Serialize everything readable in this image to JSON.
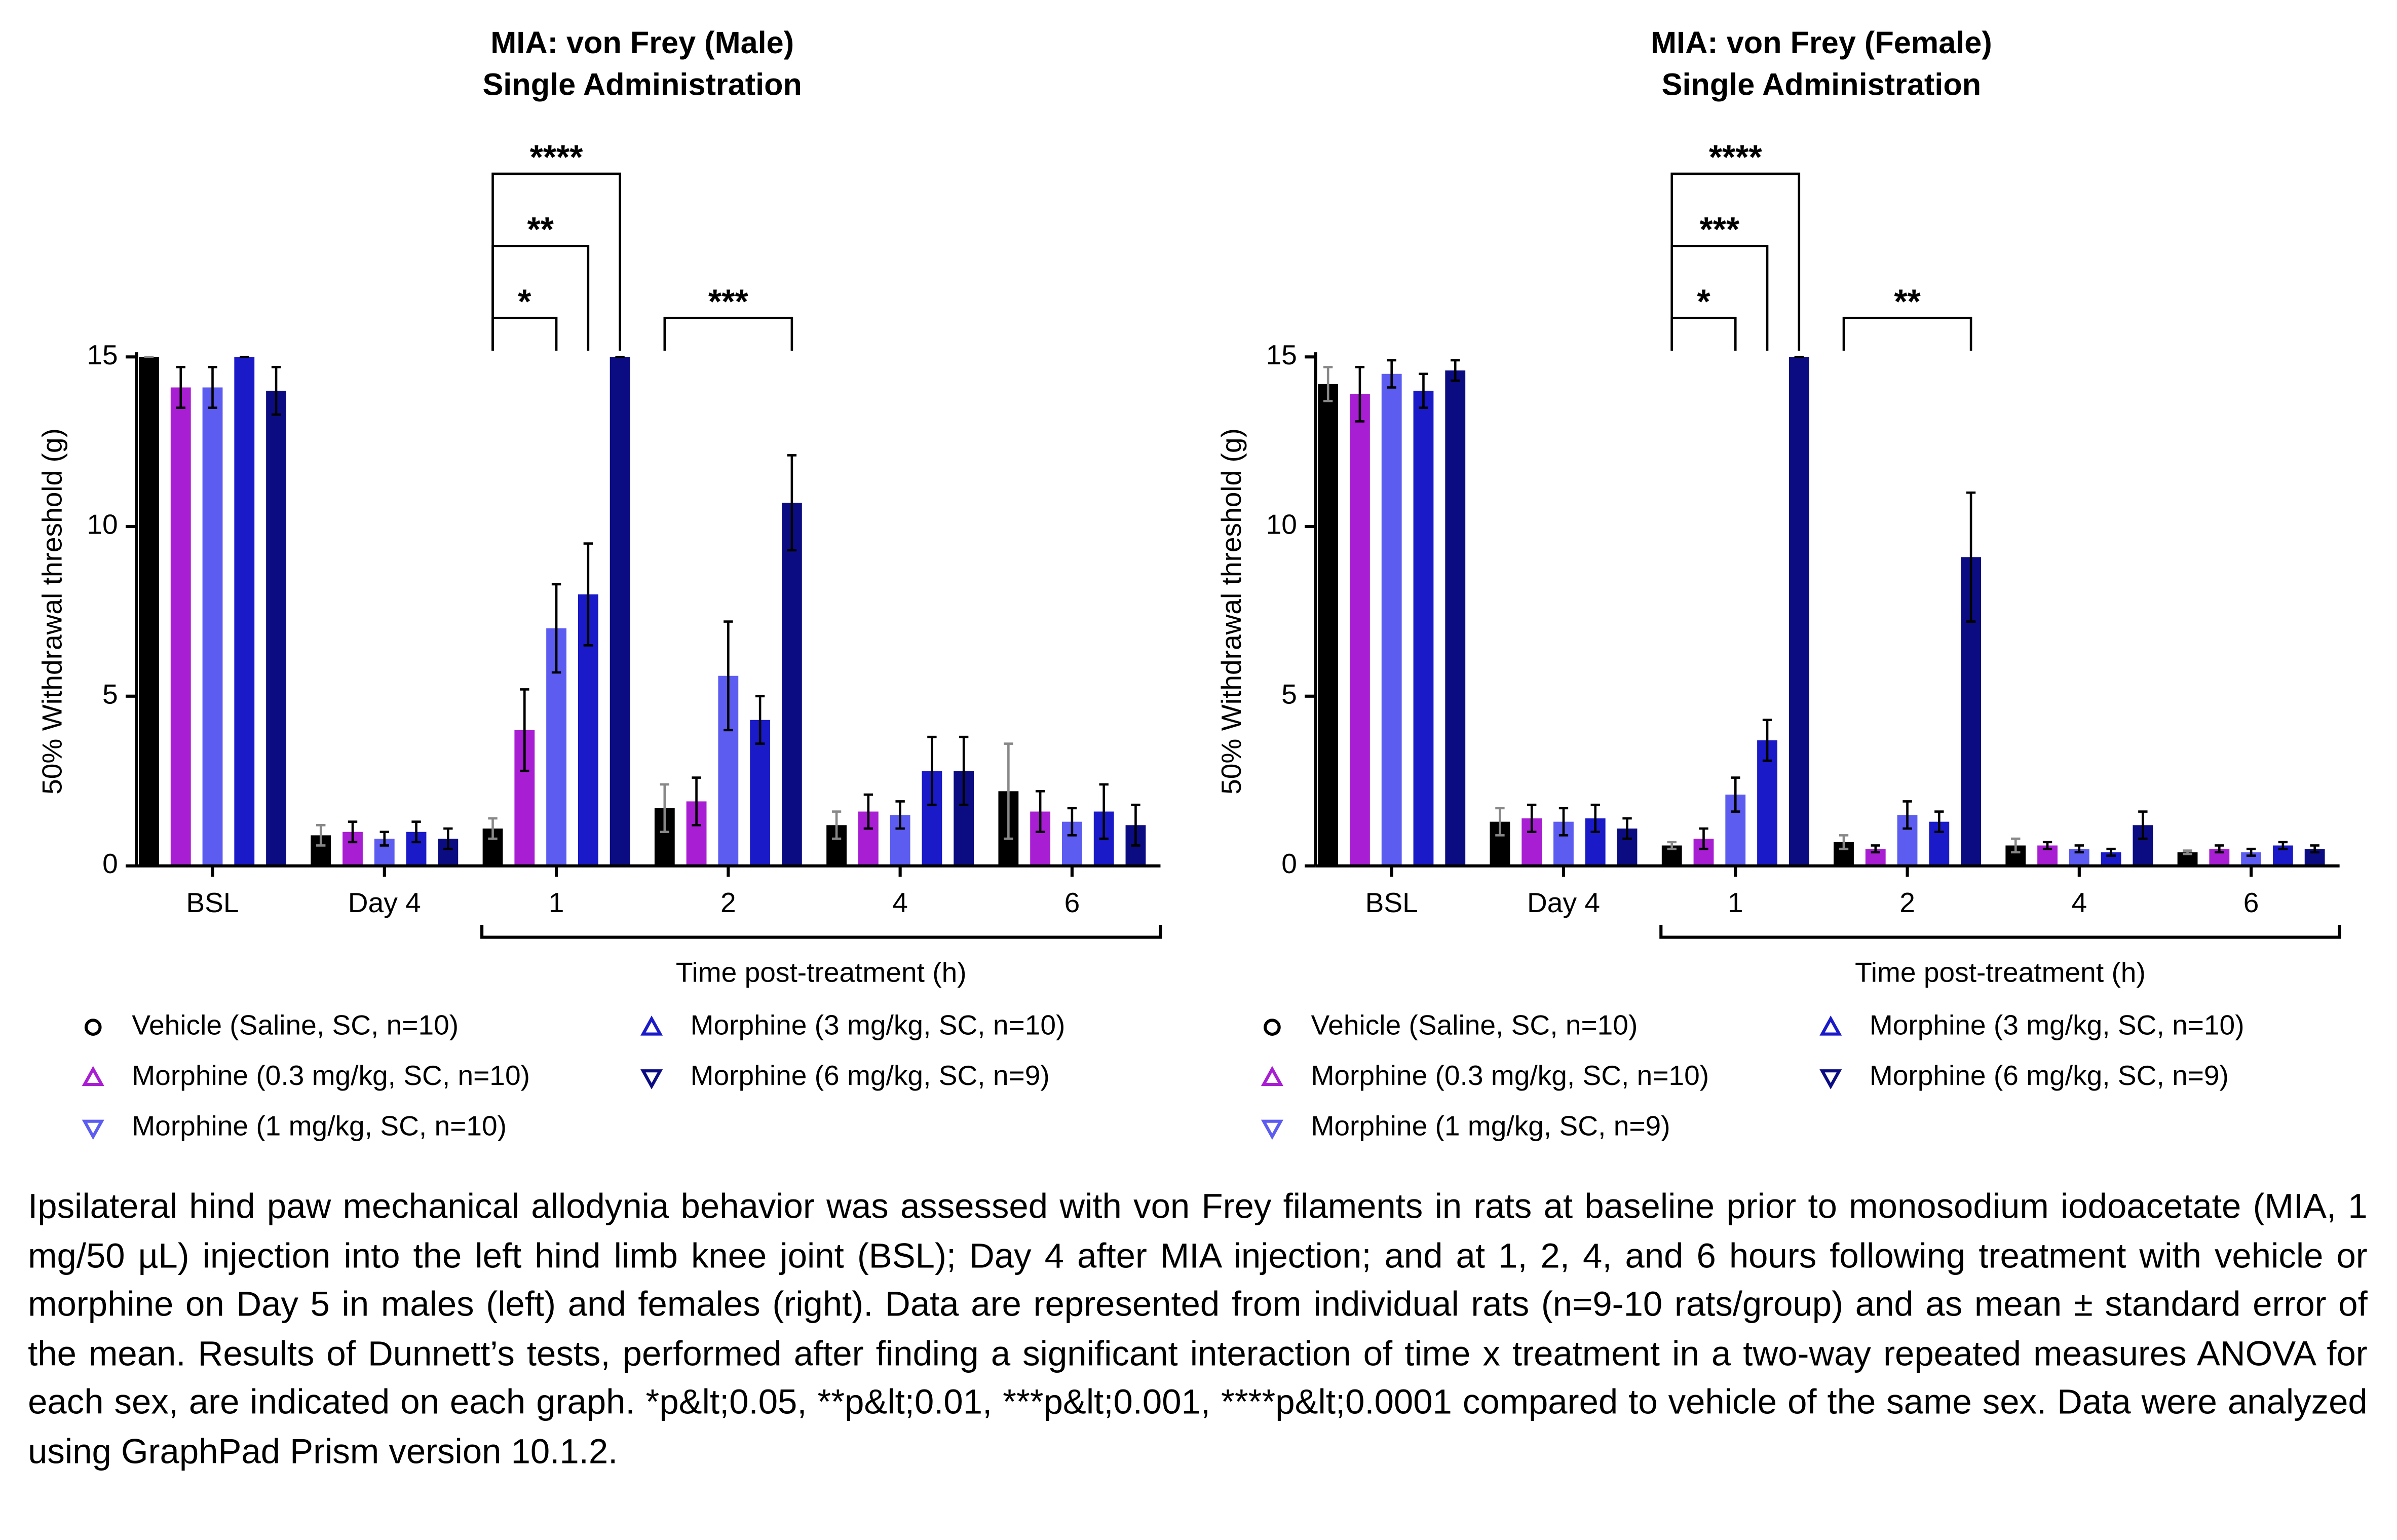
{
  "chart_data": [
    {
      "type": "bar",
      "title": "MIA: von Frey (Male)",
      "subtitle": "Single Administration",
      "y_label": "50% Withdrawal threshold (g)",
      "x_label": "Time post-treatment (h)",
      "categories": [
        "BSL",
        "Day 4",
        "1",
        "2",
        "4",
        "6"
      ],
      "ylim": [
        0,
        15
      ],
      "yticks": [
        0,
        5,
        10,
        15
      ],
      "series": [
        {
          "name": "Vehicle (Saline, SC, n=10)",
          "color": "#000000",
          "marker": "circle",
          "values": [
            15,
            0.9,
            1.1,
            1.7,
            1.2,
            2.2
          ],
          "errors": [
            0,
            0.3,
            0.3,
            0.7,
            0.4,
            1.4
          ]
        },
        {
          "name": "Morphine (0.3 mg/kg, SC, n=10)",
          "color": "#a81ed2",
          "marker": "triangle-up",
          "values": [
            14.1,
            1.0,
            4.0,
            1.9,
            1.6,
            1.6
          ],
          "errors": [
            0.6,
            0.3,
            1.2,
            0.7,
            0.5,
            0.6
          ]
        },
        {
          "name": "Morphine (1 mg/kg, SC, n=10)",
          "color": "#5c5cf0",
          "marker": "triangle-down",
          "values": [
            14.1,
            0.8,
            7.0,
            5.6,
            1.5,
            1.3
          ],
          "errors": [
            0.6,
            0.2,
            1.3,
            1.6,
            0.4,
            0.4
          ]
        },
        {
          "name": "Morphine (3 mg/kg, SC, n=10)",
          "color": "#1a1ac8",
          "marker": "triangle-up",
          "values": [
            15,
            1.0,
            8.0,
            4.3,
            2.8,
            1.6
          ],
          "errors": [
            0,
            0.3,
            1.5,
            0.7,
            1.0,
            0.8
          ]
        },
        {
          "name": "Morphine (6 mg/kg, SC, n=9)",
          "color": "#0c0c82",
          "marker": "triangle-down",
          "values": [
            14,
            0.8,
            15,
            10.7,
            2.8,
            1.2
          ],
          "errors": [
            0.7,
            0.3,
            0,
            1.4,
            1.0,
            0.6
          ]
        }
      ],
      "annotations": [
        {
          "category": 2,
          "series": 2,
          "label": "*"
        },
        {
          "category": 2,
          "series": 3,
          "label": "**"
        },
        {
          "category": 2,
          "series": 4,
          "label": "****"
        },
        {
          "category": 3,
          "series": 4,
          "label": "***"
        }
      ]
    },
    {
      "type": "bar",
      "title": "MIA: von Frey (Female)",
      "subtitle": "Single Administration",
      "y_label": "50% Withdrawal threshold (g)",
      "x_label": "Time post-treatment (h)",
      "categories": [
        "BSL",
        "Day 4",
        "1",
        "2",
        "4",
        "6"
      ],
      "ylim": [
        0,
        15
      ],
      "yticks": [
        0,
        5,
        10,
        15
      ],
      "series": [
        {
          "name": "Vehicle (Saline, SC, n=10)",
          "color": "#000000",
          "marker": "circle",
          "values": [
            14.2,
            1.3,
            0.6,
            0.7,
            0.6,
            0.4
          ],
          "errors": [
            0.5,
            0.4,
            0.1,
            0.2,
            0.2,
            0.05
          ]
        },
        {
          "name": "Morphine (0.3 mg/kg, SC, n=10)",
          "color": "#a81ed2",
          "marker": "triangle-up",
          "values": [
            13.9,
            1.4,
            0.8,
            0.5,
            0.6,
            0.5
          ],
          "errors": [
            0.8,
            0.4,
            0.3,
            0.1,
            0.1,
            0.1
          ]
        },
        {
          "name": "Morphine (1 mg/kg, SC, n=9)",
          "color": "#5c5cf0",
          "marker": "triangle-down",
          "values": [
            14.5,
            1.3,
            2.1,
            1.5,
            0.5,
            0.4
          ],
          "errors": [
            0.4,
            0.4,
            0.5,
            0.4,
            0.1,
            0.1
          ]
        },
        {
          "name": "Morphine (3 mg/kg, SC, n=10)",
          "color": "#1a1ac8",
          "marker": "triangle-up",
          "values": [
            14.0,
            1.4,
            3.7,
            1.3,
            0.4,
            0.6
          ],
          "errors": [
            0.5,
            0.4,
            0.6,
            0.3,
            0.1,
            0.1
          ]
        },
        {
          "name": "Morphine (6 mg/kg, SC, n=9)",
          "color": "#0c0c82",
          "marker": "triangle-down",
          "values": [
            14.6,
            1.1,
            15,
            9.1,
            1.2,
            0.5
          ],
          "errors": [
            0.3,
            0.3,
            0,
            1.9,
            0.4,
            0.1
          ]
        }
      ],
      "annotations": [
        {
          "category": 2,
          "series": 2,
          "label": "*"
        },
        {
          "category": 2,
          "series": 3,
          "label": "***"
        },
        {
          "category": 2,
          "series": 4,
          "label": "****"
        },
        {
          "category": 3,
          "series": 4,
          "label": "**"
        }
      ]
    }
  ],
  "caption": "Ipsilateral hind paw mechanical allodynia behavior was assessed with von Frey filaments in rats at baseline prior to monosodium iodoacetate (MIA, 1 mg/50 µL) injection into the left hind limb knee joint (BSL); Day 4 after MIA injection; and at 1, 2, 4, and 6 hours following treatment with vehicle or morphine on Day 5 in males (left) and females (right). Data are represented from individual rats (n=9-10 rats/group) and as mean ± standard error of the mean. Results of Dunnett’s tests, performed after finding a significant interaction of time x treatment in a two-way repeated measures ANOVA for each sex, are indicated on each graph. *p&lt;0.05, **p&lt;0.01, ***p&lt;0.001, ****p&lt;0.0001 compared to vehicle of the same sex. Data were analyzed using GraphPad Prism version 10.1.2."
}
